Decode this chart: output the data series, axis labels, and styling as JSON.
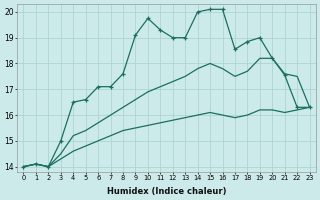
{
  "xlabel": "Humidex (Indice chaleur)",
  "bg_color": "#cdeaea",
  "grid_color": "#add4d4",
  "line_color": "#1a6e60",
  "xlim": [
    -0.5,
    23.5
  ],
  "ylim": [
    13.8,
    20.3
  ],
  "yticks": [
    14,
    15,
    16,
    17,
    18,
    19,
    20
  ],
  "xticks": [
    0,
    1,
    2,
    3,
    4,
    5,
    6,
    7,
    8,
    9,
    10,
    11,
    12,
    13,
    14,
    15,
    16,
    17,
    18,
    19,
    20,
    21,
    22,
    23
  ],
  "line1_x": [
    0,
    1,
    2,
    3,
    4,
    5,
    6,
    7,
    8,
    9,
    10,
    11,
    12,
    13,
    14,
    15,
    16,
    17,
    18,
    19,
    20,
    21,
    22,
    23
  ],
  "line1_y": [
    14.0,
    14.1,
    14.0,
    15.0,
    16.5,
    16.6,
    17.1,
    17.1,
    17.6,
    19.1,
    19.75,
    19.3,
    19.0,
    19.0,
    20.0,
    20.1,
    20.1,
    18.55,
    18.85,
    19.0,
    18.2,
    17.55,
    16.3,
    16.3
  ],
  "line2_x": [
    0,
    1,
    2,
    3,
    4,
    5,
    6,
    7,
    8,
    9,
    10,
    11,
    12,
    13,
    14,
    15,
    16,
    17,
    18,
    19,
    20,
    21,
    22,
    23
  ],
  "line2_y": [
    14.0,
    14.1,
    14.0,
    14.5,
    15.2,
    15.4,
    15.7,
    16.0,
    16.3,
    16.6,
    16.9,
    17.1,
    17.3,
    17.5,
    17.8,
    18.0,
    17.8,
    17.5,
    17.7,
    18.2,
    18.2,
    17.6,
    17.5,
    16.3
  ],
  "line3_x": [
    0,
    1,
    2,
    3,
    4,
    5,
    6,
    7,
    8,
    9,
    10,
    11,
    12,
    13,
    14,
    15,
    16,
    17,
    18,
    19,
    20,
    21,
    22,
    23
  ],
  "line3_y": [
    14.0,
    14.1,
    14.0,
    14.3,
    14.6,
    14.8,
    15.0,
    15.2,
    15.4,
    15.5,
    15.6,
    15.7,
    15.8,
    15.9,
    16.0,
    16.1,
    16.0,
    15.9,
    16.0,
    16.2,
    16.2,
    16.1,
    16.2,
    16.3
  ]
}
